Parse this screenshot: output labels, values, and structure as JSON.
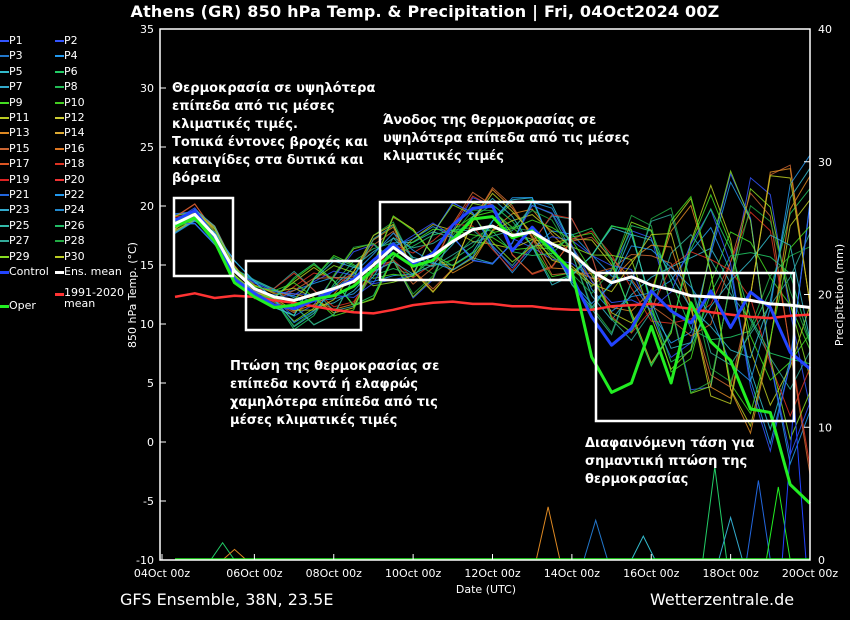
{
  "title": "Athens  (GR)  850 hPa Temp. & Precipitation | Fri, 04Oct2024 00Z",
  "footer": {
    "left": "GFS Ensemble, 38N, 23.5E",
    "right": "Wetterzentrale.de"
  },
  "legend": [
    {
      "label": "P1",
      "color": "#3355ff"
    },
    {
      "label": "P2",
      "color": "#3355ff"
    },
    {
      "label": "P3",
      "color": "#2277cc"
    },
    {
      "label": "P4",
      "color": "#2299ee"
    },
    {
      "label": "P5",
      "color": "#33bbcc"
    },
    {
      "label": "P6",
      "color": "#22cc66"
    },
    {
      "label": "P7",
      "color": "#33aacc"
    },
    {
      "label": "P8",
      "color": "#22bb55"
    },
    {
      "label": "P9",
      "color": "#44dd22"
    },
    {
      "label": "P10",
      "color": "#44cc22"
    },
    {
      "label": "P11",
      "color": "#bbcc22"
    },
    {
      "label": "P12",
      "color": "#cccc33"
    },
    {
      "label": "P13",
      "color": "#dd8822"
    },
    {
      "label": "P14",
      "color": "#ddaa33"
    },
    {
      "label": "P15",
      "color": "#cc6633"
    },
    {
      "label": "P16",
      "color": "#dd7722"
    },
    {
      "label": "P17",
      "color": "#dd5522"
    },
    {
      "label": "P18",
      "color": "#dd3322"
    },
    {
      "label": "P19",
      "color": "#dd2222"
    },
    {
      "label": "P20",
      "color": "#ee3333"
    },
    {
      "label": "P21",
      "color": "#2266dd"
    },
    {
      "label": "P22",
      "color": "#2299ee"
    },
    {
      "label": "P23",
      "color": "#33aacc"
    },
    {
      "label": "P24",
      "color": "#2288cc"
    },
    {
      "label": "P25",
      "color": "#33bbaa"
    },
    {
      "label": "P26",
      "color": "#22bb66"
    },
    {
      "label": "P27",
      "color": "#33aa99"
    },
    {
      "label": "P28",
      "color": "#22aa44"
    },
    {
      "label": "P29",
      "color": "#88dd22"
    },
    {
      "label": "P30",
      "color": "#bbcc22"
    },
    {
      "label": "Control",
      "color": "#2244ff"
    },
    {
      "label": "Ens. mean",
      "color": "#ffffff"
    },
    {
      "label": "Oper",
      "color": "#22ee22"
    },
    {
      "label": "1991-2020\nmean",
      "color": "#ff3333"
    }
  ],
  "annotations": [
    "Θερμοκρασία σε υψηλότερα\nεπίπεδα από τις μέσες\nκλιματικές τιμές.\nΤοπικά έντονες βροχές και\nκαταιγίδες στα δυτικά και\nβόρεια",
    "Άνοδος της θερμοκρασίας σε\nυψηλότερα επίπεδα από τις μέσες\nκλιματικές τιμές",
    "Πτώση της θερμοκρασίας σε\nεπίπεδα κοντά ή ελαφρώς\nχαμηλότερα επίπεδα από τις\nμέσες κλιματικές τιμές",
    "Διαφαινόμενη τάση για\nσημαντική πτώση της\nθερμοκρασίας"
  ],
  "chart_data": {
    "type": "line",
    "x_ticks": [
      "04Oct 00z",
      "06Oct 00z",
      "08Oct 00z",
      "10Oct 00z",
      "12Oct 00z",
      "14Oct 00z",
      "16Oct 00z",
      "18Oct 00z",
      "20Oct 00z"
    ],
    "xlabel": "Date (UTC)",
    "ylabel": "850 hPa Temp. (°C)",
    "y2label": "Precipitation (mm)",
    "ylim": [
      -10,
      35
    ],
    "y_ticks": [
      -10,
      -5,
      0,
      5,
      10,
      15,
      20,
      25,
      30,
      35
    ],
    "y2lim": [
      0,
      40
    ],
    "y2_ticks": [
      0,
      10,
      20,
      30,
      40
    ],
    "x_days": [
      0,
      0.5,
      1,
      1.5,
      2,
      2.5,
      3,
      3.5,
      4,
      4.5,
      5,
      5.5,
      6,
      6.5,
      7,
      7.5,
      8,
      8.5,
      9,
      9.5,
      10,
      10.5,
      11,
      11.5,
      12,
      12.5,
      13,
      13.5,
      14,
      14.5,
      15,
      15.5,
      16
    ],
    "series": [
      {
        "name": "Ens. mean",
        "color": "#ffffff",
        "width": 3,
        "values": [
          18.5,
          19.3,
          17.5,
          14.5,
          13.0,
          12.3,
          12.0,
          12.5,
          13.0,
          13.6,
          15.0,
          16.5,
          15.3,
          15.8,
          17.0,
          18.0,
          18.3,
          17.5,
          17.8,
          16.8,
          16.0,
          14.5,
          13.5,
          14.0,
          13.3,
          12.9,
          12.4,
          12.3,
          12.2,
          12.0,
          11.7,
          11.6,
          11.4
        ]
      },
      {
        "name": "Oper",
        "color": "#22ee22",
        "width": 3,
        "values": [
          18.3,
          19.0,
          17.0,
          13.5,
          12.3,
          11.4,
          11.6,
          12.1,
          12.4,
          13.2,
          14.6,
          16.0,
          14.9,
          15.4,
          17.1,
          18.9,
          19.1,
          17.3,
          17.9,
          16.2,
          14.5,
          7.2,
          4.2,
          5.0,
          9.8,
          5.0,
          11.8,
          8.5,
          6.9,
          2.8,
          2.5,
          -3.6,
          -5.2
        ]
      },
      {
        "name": "Control",
        "color": "#2244ff",
        "width": 3,
        "values": [
          18.8,
          19.6,
          17.4,
          13.8,
          12.6,
          11.6,
          11.3,
          12.0,
          12.9,
          13.8,
          15.4,
          16.8,
          15.1,
          16.0,
          18.4,
          19.8,
          20.0,
          16.2,
          18.2,
          16.4,
          14.0,
          10.6,
          8.2,
          9.6,
          12.8,
          11.1,
          10.1,
          12.8,
          9.7,
          12.7,
          11.4,
          7.6,
          6.2
        ]
      },
      {
        "name": "1991-2020 mean",
        "color": "#ff3333",
        "width": 2.5,
        "values": [
          12.3,
          12.6,
          12.2,
          12.4,
          12.3,
          12.0,
          11.8,
          11.5,
          11.2,
          11.0,
          10.9,
          11.2,
          11.6,
          11.8,
          11.9,
          11.7,
          11.7,
          11.5,
          11.5,
          11.3,
          11.2,
          11.2,
          11.5,
          11.6,
          11.7,
          11.5,
          11.3,
          11.0,
          10.8,
          10.6,
          10.5,
          10.7,
          10.8
        ]
      }
    ],
    "ensemble_color_cycle": [
      "#3355ff",
      "#2299ee",
      "#33bbcc",
      "#22cc66",
      "#44dd22",
      "#bbcc22",
      "#dd8822",
      "#cc6633",
      "#dd3322",
      "#33aa99",
      "#22aa44",
      "#88dd22"
    ]
  }
}
